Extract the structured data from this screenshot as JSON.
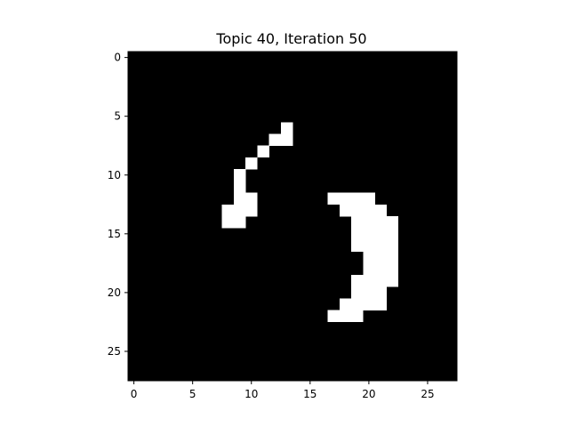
{
  "chart_data": {
    "type": "heatmap",
    "title": "Topic 40, Iteration 50",
    "xlabel": "",
    "ylabel": "",
    "grid": false,
    "colormap": "gray",
    "background_color": "#000000",
    "pixel_color": "#ffffff",
    "rows": 28,
    "cols": 28,
    "xlim": [
      -0.5,
      27.5
    ],
    "ylim": [
      27.5,
      -0.5
    ],
    "xticks": [
      0,
      5,
      10,
      15,
      20,
      25
    ],
    "yticks": [
      0,
      5,
      10,
      15,
      20,
      25
    ],
    "xtick_labels": [
      "0",
      "5",
      "10",
      "15",
      "20",
      "25"
    ],
    "ytick_labels": [
      "0",
      "5",
      "10",
      "15",
      "20",
      "25"
    ],
    "white_pixels": [
      [
        6,
        13
      ],
      [
        7,
        12
      ],
      [
        7,
        13
      ],
      [
        8,
        11
      ],
      [
        9,
        10
      ],
      [
        10,
        9
      ],
      [
        11,
        9
      ],
      [
        12,
        9
      ],
      [
        12,
        10
      ],
      [
        12,
        17
      ],
      [
        12,
        18
      ],
      [
        12,
        19
      ],
      [
        12,
        20
      ],
      [
        13,
        8
      ],
      [
        13,
        9
      ],
      [
        13,
        10
      ],
      [
        13,
        18
      ],
      [
        13,
        19
      ],
      [
        13,
        20
      ],
      [
        13,
        21
      ],
      [
        14,
        8
      ],
      [
        14,
        9
      ],
      [
        14,
        19
      ],
      [
        14,
        20
      ],
      [
        14,
        21
      ],
      [
        14,
        22
      ],
      [
        15,
        19
      ],
      [
        15,
        20
      ],
      [
        15,
        21
      ],
      [
        15,
        22
      ],
      [
        16,
        19
      ],
      [
        16,
        20
      ],
      [
        16,
        21
      ],
      [
        16,
        22
      ],
      [
        17,
        20
      ],
      [
        17,
        21
      ],
      [
        17,
        22
      ],
      [
        18,
        20
      ],
      [
        18,
        21
      ],
      [
        18,
        22
      ],
      [
        19,
        19
      ],
      [
        19,
        20
      ],
      [
        19,
        21
      ],
      [
        19,
        22
      ],
      [
        20,
        19
      ],
      [
        20,
        20
      ],
      [
        20,
        21
      ],
      [
        21,
        18
      ],
      [
        21,
        19
      ],
      [
        21,
        20
      ],
      [
        21,
        21
      ],
      [
        22,
        17
      ],
      [
        22,
        18
      ],
      [
        22,
        19
      ]
    ]
  }
}
